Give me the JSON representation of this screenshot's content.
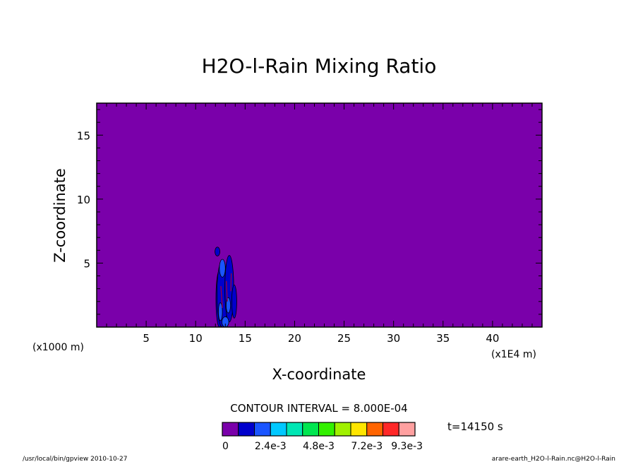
{
  "chart_data": {
    "type": "heatmap",
    "title": "H2O-l-Rain Mixing Ratio",
    "xlabel": "X-coordinate",
    "ylabel": "Z-coordinate",
    "x_unit_left": "(x1000 m)",
    "x_unit_right": "(x1E4 m)",
    "xlim": [
      0,
      45
    ],
    "ylim": [
      0,
      17.5
    ],
    "x_ticks": [
      5,
      10,
      15,
      20,
      25,
      30,
      35,
      40
    ],
    "y_ticks": [
      5,
      10,
      15
    ],
    "x_tick_labels": [
      "5",
      "10",
      "15",
      "20",
      "25",
      "30",
      "35",
      "40"
    ],
    "y_tick_labels": [
      "5",
      "10",
      "15"
    ],
    "background_color": "#7a00aa",
    "rain_cell": {
      "x_range": [
        11.9,
        14.2
      ],
      "z_range": [
        0,
        6.3
      ]
    },
    "contour_interval": "CONTOUR INTERVAL = 8.000E-04",
    "time_label": "t=14150  s",
    "colorbar": {
      "colors": [
        "#7a00aa",
        "#0000cc",
        "#1a55ff",
        "#00c8ff",
        "#00e6b4",
        "#00e650",
        "#32f000",
        "#a0f000",
        "#ffe600",
        "#ff6400",
        "#ff2828",
        "#ffa0a0"
      ],
      "labels": [
        "0",
        "2.4e-3",
        "4.8e-3",
        "7.2e-3",
        "9.3e-3"
      ]
    }
  },
  "footer": {
    "left": "/usr/local/bin/gpview  2010-10-27",
    "right": "arare-earth_H2O-l-Rain.nc@H2O-l-Rain"
  }
}
